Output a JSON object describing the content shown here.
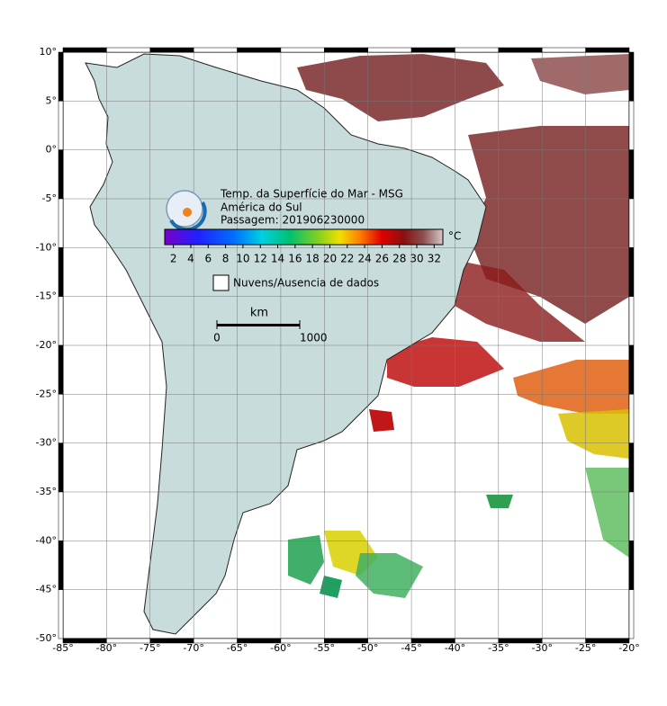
{
  "map": {
    "title_lines": [
      "Temp. da Superfície do Mar - MSG",
      "América do Sul",
      "Passagem: 201906230000"
    ],
    "lonlim": [
      -85,
      -20
    ],
    "latlim": [
      -50,
      10
    ],
    "lon_ticks": [
      {
        "value": -85,
        "label": "-85°"
      },
      {
        "value": -80,
        "label": "-80°"
      },
      {
        "value": -75,
        "label": "-75°"
      },
      {
        "value": -70,
        "label": "-70°"
      },
      {
        "value": -65,
        "label": "-65°"
      },
      {
        "value": -60,
        "label": "-60°"
      },
      {
        "value": -55,
        "label": "-55°"
      },
      {
        "value": -50,
        "label": "-50°"
      },
      {
        "value": -45,
        "label": "-45°"
      },
      {
        "value": -40,
        "label": "-40°"
      },
      {
        "value": -35,
        "label": "-35°"
      },
      {
        "value": -30,
        "label": "-30°"
      },
      {
        "value": -25,
        "label": "-25°"
      },
      {
        "value": -20,
        "label": "-20°"
      }
    ],
    "lat_ticks": [
      {
        "value": 10,
        "label": "10°"
      },
      {
        "value": 5,
        "label": "5°"
      },
      {
        "value": 0,
        "label": "0°"
      },
      {
        "value": -5,
        "label": "-5°"
      },
      {
        "value": -10,
        "label": "-10°"
      },
      {
        "value": -15,
        "label": "-15°"
      },
      {
        "value": -20,
        "label": "-20°"
      },
      {
        "value": -25,
        "label": "-25°"
      },
      {
        "value": -30,
        "label": "-30°"
      },
      {
        "value": -35,
        "label": "-35°"
      },
      {
        "value": -40,
        "label": "-40°"
      },
      {
        "value": -45,
        "label": "-45°"
      },
      {
        "value": -50,
        "label": "-50°"
      }
    ]
  },
  "colorbar": {
    "unit": "°C",
    "lim": [
      1,
      33
    ],
    "ticks": [
      2,
      4,
      6,
      8,
      10,
      12,
      14,
      16,
      18,
      20,
      22,
      24,
      26,
      28,
      30,
      32
    ]
  },
  "legend": {
    "label": "Nuvens/Ausencia de dados"
  },
  "scale_bar": {
    "unit": "km",
    "ticks": [
      0,
      1000
    ]
  }
}
